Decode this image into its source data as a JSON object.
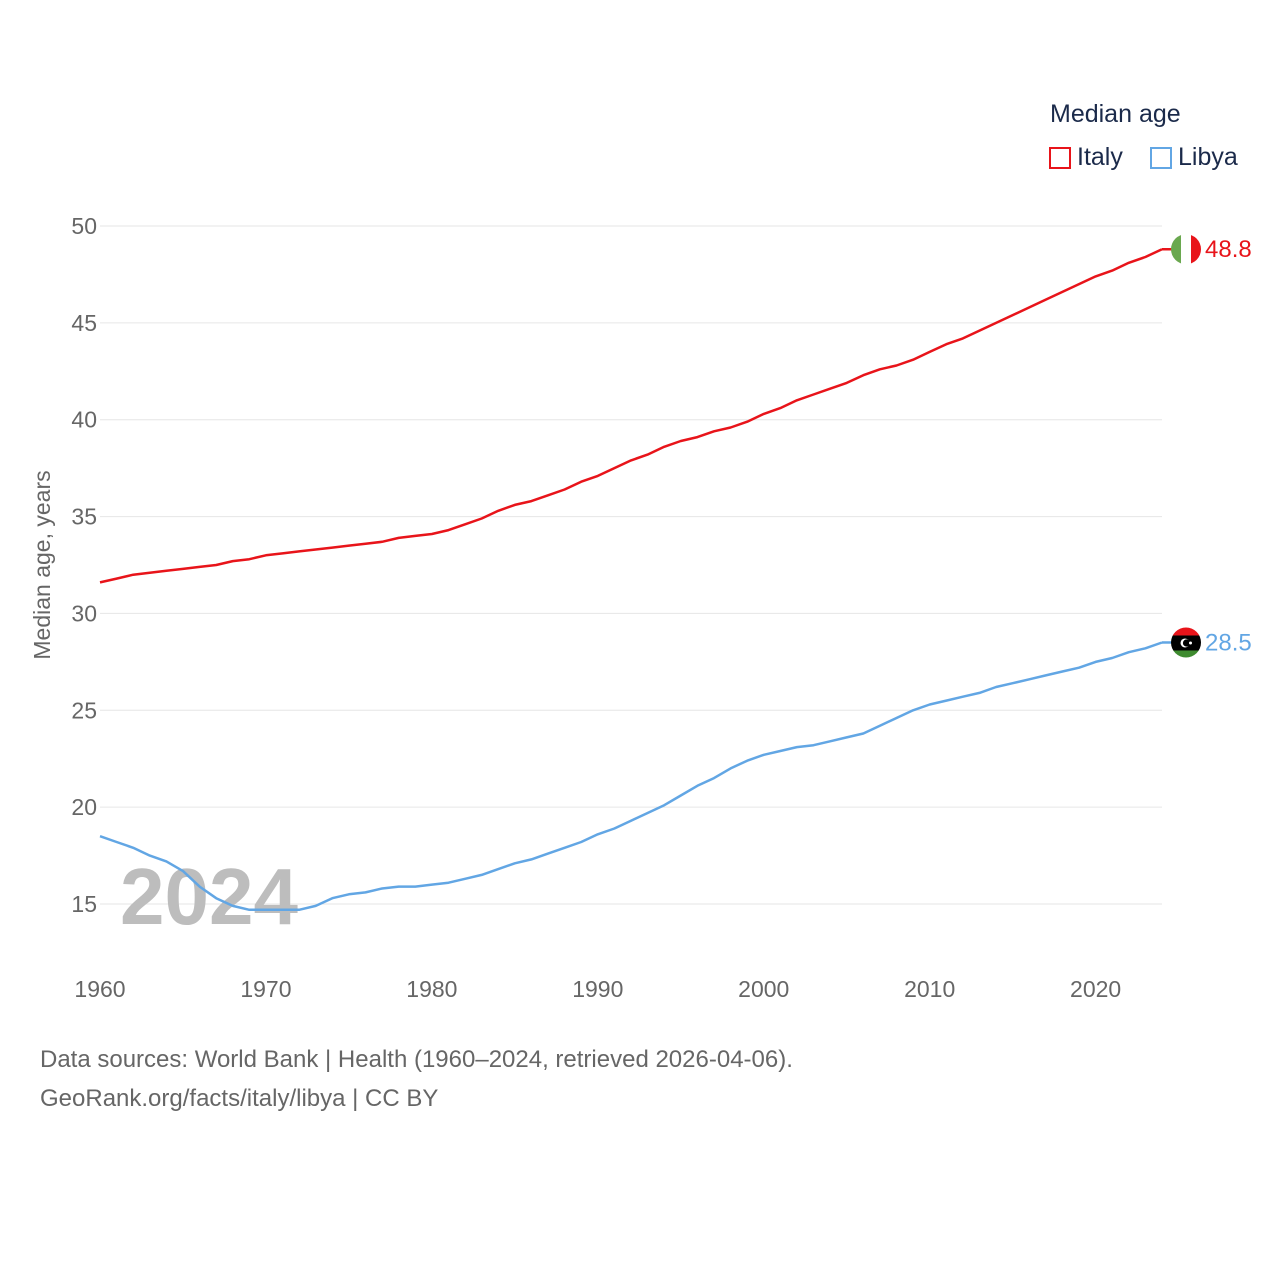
{
  "legend": {
    "title": "Median age",
    "items": [
      {
        "name": "Italy",
        "color": "#e8141a"
      },
      {
        "name": "Libya",
        "color": "#62a6e4"
      }
    ]
  },
  "year_display": "2024",
  "source_line1": "Data sources: World Bank | Health (1960–2024, retrieved 2026-04-06).",
  "source_line2": "GeoRank.org/facts/italy/libya | CC BY",
  "chart_data": {
    "type": "line",
    "title": "Median age",
    "xlabel": "",
    "ylabel": "Median age, years",
    "xlim": [
      1960,
      2024
    ],
    "ylim": [
      12.5,
      51
    ],
    "yticks": [
      15,
      20,
      25,
      30,
      35,
      40,
      45,
      50
    ],
    "xticks": [
      1960,
      1970,
      1980,
      1990,
      2000,
      2010,
      2020
    ],
    "x": [
      1960,
      1961,
      1962,
      1963,
      1964,
      1965,
      1966,
      1967,
      1968,
      1969,
      1970,
      1971,
      1972,
      1973,
      1974,
      1975,
      1976,
      1977,
      1978,
      1979,
      1980,
      1981,
      1982,
      1983,
      1984,
      1985,
      1986,
      1987,
      1988,
      1989,
      1990,
      1991,
      1992,
      1993,
      1994,
      1995,
      1996,
      1997,
      1998,
      1999,
      2000,
      2001,
      2002,
      2003,
      2004,
      2005,
      2006,
      2007,
      2008,
      2009,
      2010,
      2011,
      2012,
      2013,
      2014,
      2015,
      2016,
      2017,
      2018,
      2019,
      2020,
      2021,
      2022,
      2023,
      2024
    ],
    "series": [
      {
        "name": "Italy",
        "color": "#e8141a",
        "end_label": "48.8",
        "values": [
          31.6,
          31.8,
          32.0,
          32.1,
          32.2,
          32.3,
          32.4,
          32.5,
          32.7,
          32.8,
          33.0,
          33.1,
          33.2,
          33.3,
          33.4,
          33.5,
          33.6,
          33.7,
          33.9,
          34.0,
          34.1,
          34.3,
          34.6,
          34.9,
          35.3,
          35.6,
          35.8,
          36.1,
          36.4,
          36.8,
          37.1,
          37.5,
          37.9,
          38.2,
          38.6,
          38.9,
          39.1,
          39.4,
          39.6,
          39.9,
          40.3,
          40.6,
          41.0,
          41.3,
          41.6,
          41.9,
          42.3,
          42.6,
          42.8,
          43.1,
          43.5,
          43.9,
          44.2,
          44.6,
          45.0,
          45.4,
          45.8,
          46.2,
          46.6,
          47.0,
          47.4,
          47.7,
          48.1,
          48.4,
          48.8
        ]
      },
      {
        "name": "Libya",
        "color": "#62a6e4",
        "end_label": "28.5",
        "values": [
          18.5,
          18.2,
          17.9,
          17.5,
          17.2,
          16.7,
          15.9,
          15.3,
          14.9,
          14.7,
          14.7,
          14.7,
          14.7,
          14.9,
          15.3,
          15.5,
          15.6,
          15.8,
          15.9,
          15.9,
          16.0,
          16.1,
          16.3,
          16.5,
          16.8,
          17.1,
          17.3,
          17.6,
          17.9,
          18.2,
          18.6,
          18.9,
          19.3,
          19.7,
          20.1,
          20.6,
          21.1,
          21.5,
          22.0,
          22.4,
          22.7,
          22.9,
          23.1,
          23.2,
          23.4,
          23.6,
          23.8,
          24.2,
          24.6,
          25.0,
          25.3,
          25.5,
          25.7,
          25.9,
          26.2,
          26.4,
          26.6,
          26.8,
          27.0,
          27.2,
          27.5,
          27.7,
          28.0,
          28.2,
          28.5
        ]
      }
    ]
  }
}
